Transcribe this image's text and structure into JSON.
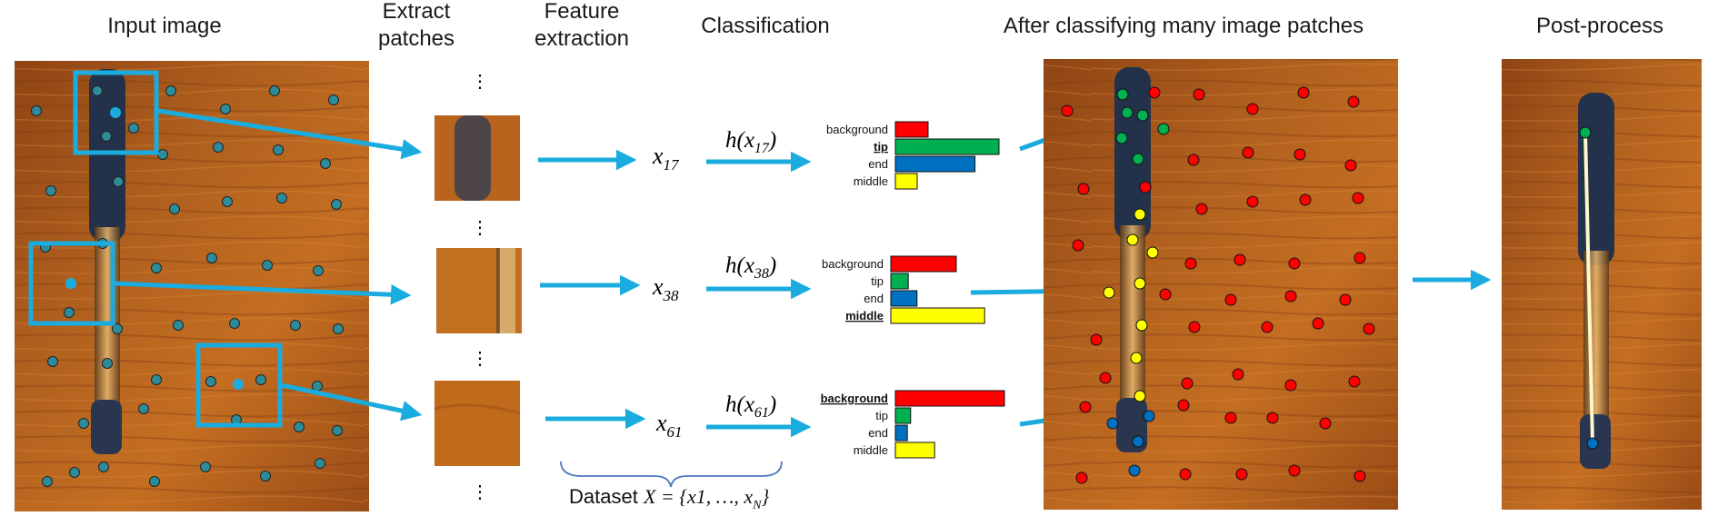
{
  "headers": {
    "input_image": "Input image",
    "extract_patches_1": "Extract",
    "extract_patches_2": "patches",
    "feature_extraction_1": "Feature",
    "feature_extraction_2": "extraction",
    "classification": "Classification",
    "after_classifying": "After classifying many image patches",
    "post_process": "Post-process"
  },
  "ellipsis": "⋮",
  "features": [
    {
      "base": "x",
      "sub": "17",
      "h_pre": "h(x",
      "h_post": ")"
    },
    {
      "base": "x",
      "sub": "38",
      "h_pre": "h(x",
      "h_post": ")"
    },
    {
      "base": "x",
      "sub": "61",
      "h_pre": "h(x",
      "h_post": ")"
    }
  ],
  "dataset": {
    "prefix": "Dataset ",
    "var": "X",
    "eq": " = {x1, …, x",
    "sub": "N",
    "close": "}"
  },
  "classes": [
    "background",
    "tip",
    "end",
    "middle"
  ],
  "class_colors": [
    "#ff0000",
    "#00b050",
    "#0070c0",
    "#ffff00"
  ],
  "classifiers": [
    {
      "winner": "tip",
      "scores": [
        0.3,
        0.95,
        0.73,
        0.2
      ]
    },
    {
      "winner": "middle",
      "scores": [
        0.6,
        0.16,
        0.24,
        0.86
      ]
    },
    {
      "winner": "background",
      "scores": [
        1.0,
        0.14,
        0.11,
        0.36
      ]
    }
  ],
  "colors": {
    "arrow": "#1aacde",
    "box": "#1aacde",
    "sample_dot": "#2e8b9a",
    "pen_line": "#fff7cc"
  }
}
